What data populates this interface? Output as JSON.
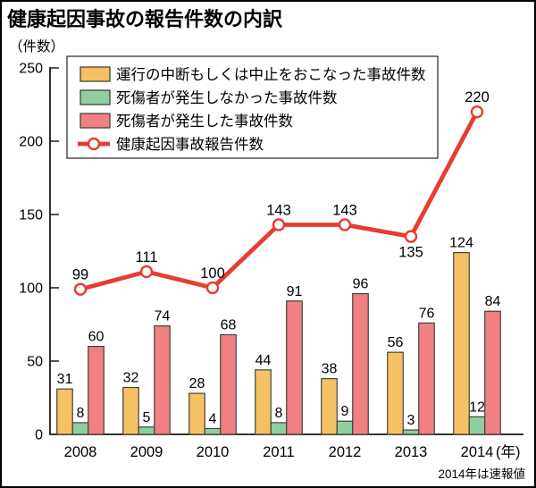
{
  "title": "健康起因事故の報告件数の内訳",
  "y_axis": {
    "unit_label": "（件数）",
    "ticks": [
      0,
      50,
      100,
      150,
      200,
      250
    ],
    "max": 250
  },
  "x_axis": {
    "suffix": "(年)"
  },
  "footnote": "2014年は速報値",
  "colors": {
    "operation_stop_bar": "#F5C163",
    "no_casualty_bar": "#8FCEA0",
    "casualty_bar": "#F08081",
    "total_line": "#E73C30",
    "bar_border": "#45413C",
    "axis": "#1A1A1A",
    "legend_border": "#222222"
  },
  "legend": {
    "items": [
      {
        "label": "運行の中断もしくは中止をおこなった事故件数",
        "swatch": "box",
        "color_key": "operation_stop_bar"
      },
      {
        "label": "死傷者が発生しなかった事故件数",
        "swatch": "box",
        "color_key": "no_casualty_bar"
      },
      {
        "label": "死傷者が発生した事故件数",
        "swatch": "box",
        "color_key": "casualty_bar"
      },
      {
        "label": "健康起因事故報告件数",
        "swatch": "line",
        "color_key": "total_line"
      }
    ]
  },
  "chart_data": {
    "type": "bar+line",
    "title": "健康起因事故の報告件数の内訳",
    "categories": [
      "2008",
      "2009",
      "2010",
      "2011",
      "2012",
      "2013",
      "2014"
    ],
    "series": [
      {
        "name": "運行の中断もしくは中止をおこなった事故件数",
        "kind": "bar",
        "color_key": "operation_stop_bar",
        "values": [
          31,
          32,
          28,
          44,
          38,
          56,
          124
        ]
      },
      {
        "name": "死傷者が発生しなかった事故件数",
        "kind": "bar",
        "color_key": "no_casualty_bar",
        "values": [
          8,
          5,
          4,
          8,
          9,
          3,
          12
        ]
      },
      {
        "name": "死傷者が発生した事故件数",
        "kind": "bar",
        "color_key": "casualty_bar",
        "values": [
          60,
          74,
          68,
          91,
          96,
          76,
          84
        ]
      },
      {
        "name": "健康起因事故報告件数",
        "kind": "line",
        "color_key": "total_line",
        "values": [
          99,
          111,
          100,
          143,
          143,
          135,
          220
        ]
      }
    ],
    "xlabel": "年",
    "ylabel": "件数",
    "ylim": [
      0,
      250
    ],
    "grid": false,
    "legend_position": "top-left-inside",
    "data_labels": true
  }
}
